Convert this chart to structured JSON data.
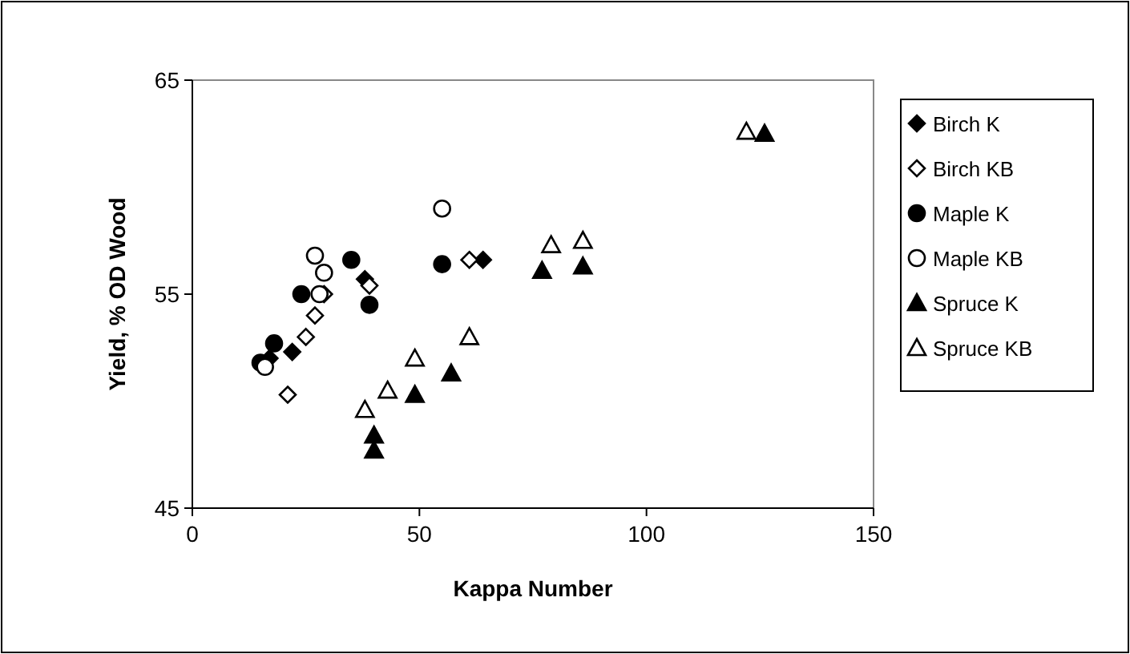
{
  "chart_data": {
    "type": "scatter",
    "xlabel": "Kappa Number",
    "ylabel": "Yield, % OD Wood",
    "xlim": [
      0,
      150
    ],
    "xticks": [
      0,
      50,
      100,
      150
    ],
    "ylim": [
      45,
      65
    ],
    "yticks": [
      45,
      55,
      65
    ],
    "grid": false,
    "legend": "right",
    "series": [
      {
        "name": "Birch K",
        "color": "#000000",
        "marker": "diamond",
        "x": [
          17,
          22,
          38,
          64
        ],
        "values": [
          52.0,
          52.3,
          55.7,
          56.6
        ]
      },
      {
        "name": "Birch KB",
        "color": "#000000",
        "marker": "diamond",
        "x": [
          21,
          25,
          27,
          29,
          39,
          61
        ],
        "values": [
          50.3,
          53.0,
          54.0,
          55.0,
          55.4,
          56.6
        ]
      },
      {
        "name": "Maple K",
        "color": "#000000",
        "marker": "circle",
        "x": [
          15,
          18,
          24,
          35,
          39,
          55
        ],
        "values": [
          51.8,
          52.7,
          55.0,
          56.6,
          54.5,
          56.4
        ]
      },
      {
        "name": "Maple KB",
        "color": "#000000",
        "marker": "circle",
        "x": [
          16,
          27,
          28,
          29,
          55
        ],
        "values": [
          51.6,
          56.8,
          55.0,
          56.0,
          59.0
        ]
      },
      {
        "name": "Spruce K",
        "color": "#000000",
        "marker": "triangle",
        "x": [
          40,
          40,
          49,
          57,
          77,
          86,
          126
        ],
        "values": [
          48.4,
          47.7,
          50.3,
          51.3,
          56.1,
          56.3,
          62.5
        ]
      },
      {
        "name": "Spruce KB",
        "color": "#000000",
        "marker": "triangle",
        "x": [
          38,
          43,
          49,
          61,
          79,
          86,
          122
        ],
        "values": [
          49.6,
          50.5,
          52.0,
          53.0,
          57.3,
          57.5,
          62.6
        ]
      }
    ]
  }
}
